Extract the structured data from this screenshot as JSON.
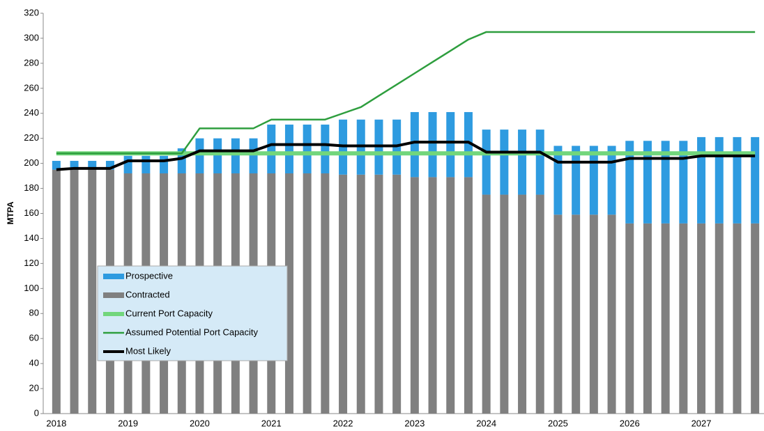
{
  "chart_data": {
    "type": "bar",
    "stacked": true,
    "y_label": "MTPA",
    "categories": [
      "2018",
      null,
      null,
      null,
      "2019",
      null,
      null,
      null,
      "2020",
      null,
      null,
      null,
      "2021",
      null,
      null,
      null,
      "2022",
      null,
      null,
      null,
      "2023",
      null,
      null,
      null,
      "2024",
      null,
      null,
      null,
      "2025",
      null,
      null,
      null,
      "2026",
      null,
      null,
      null,
      "2027",
      null,
      null,
      null
    ],
    "series": [
      {
        "name": "Prospective",
        "type": "bar",
        "color": "#2e9be0",
        "values": [
          7,
          7,
          7,
          7,
          14,
          14,
          14,
          20,
          28,
          28,
          28,
          28,
          39,
          39,
          39,
          39,
          44,
          44,
          44,
          44,
          52,
          52,
          52,
          52,
          52,
          52,
          52,
          52,
          55,
          55,
          55,
          55,
          66,
          66,
          66,
          66,
          69,
          69,
          69,
          69
        ]
      },
      {
        "name": "Contracted",
        "type": "bar",
        "color": "#808080",
        "values": [
          195,
          195,
          195,
          195,
          192,
          192,
          192,
          192,
          192,
          192,
          192,
          192,
          192,
          192,
          192,
          192,
          191,
          191,
          191,
          191,
          189,
          189,
          189,
          189,
          175,
          175,
          175,
          175,
          159,
          159,
          159,
          159,
          152,
          152,
          152,
          152,
          152,
          152,
          152,
          152
        ]
      },
      {
        "name": "Current Port Capacity",
        "type": "line",
        "color": "#72d67c",
        "line_width": 6,
        "values": [
          208,
          208,
          208,
          208,
          208,
          208,
          208,
          208,
          208,
          208,
          208,
          208,
          208,
          208,
          208,
          208,
          208,
          208,
          208,
          208,
          208,
          208,
          208,
          208,
          208,
          208,
          208,
          208,
          208,
          208,
          208,
          208,
          208,
          208,
          208,
          208,
          208,
          208,
          208,
          208
        ]
      },
      {
        "name": "Assumed Potential Port Capacity",
        "type": "line",
        "color": "#2e9e3e",
        "line_width": 2.5,
        "values": [
          208,
          208,
          208,
          208,
          208,
          208,
          208,
          208,
          228,
          228,
          228,
          228,
          235,
          235,
          235,
          235,
          240,
          245,
          254,
          263,
          272,
          281,
          290,
          299,
          305,
          305,
          305,
          305,
          305,
          305,
          305,
          305,
          305,
          305,
          305,
          305,
          305,
          305,
          305,
          305
        ]
      },
      {
        "name": "Most Likely",
        "type": "line",
        "color": "#000000",
        "line_width": 4,
        "values": [
          195,
          196,
          196,
          196,
          202,
          202,
          202,
          204,
          210,
          210,
          210,
          210,
          215,
          215,
          215,
          215,
          214,
          214,
          214,
          214,
          217,
          217,
          217,
          217,
          209,
          209,
          209,
          209,
          201,
          201,
          201,
          201,
          204,
          204,
          204,
          204,
          206,
          206,
          206,
          206
        ]
      }
    ],
    "ylim": [
      0,
      320
    ],
    "yticks": [
      0,
      20,
      40,
      60,
      80,
      100,
      120,
      140,
      160,
      180,
      200,
      220,
      240,
      260,
      280,
      300,
      320
    ],
    "grid": false,
    "legend": "bottom-left"
  }
}
